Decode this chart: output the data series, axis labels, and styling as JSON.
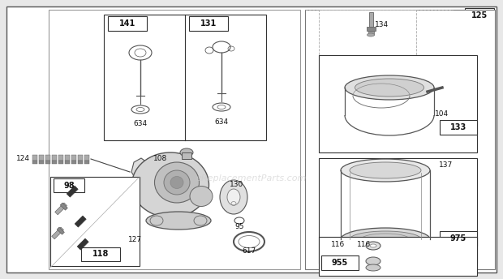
{
  "bg_color": "#ffffff",
  "watermark": "eReplacementParts.com",
  "outer_bg": "#f0f0f0",
  "main_bg": "#ffffff",
  "border_color": "#333333",
  "line_color": "#555555",
  "part_color": "#888888",
  "text_color": "#111111"
}
